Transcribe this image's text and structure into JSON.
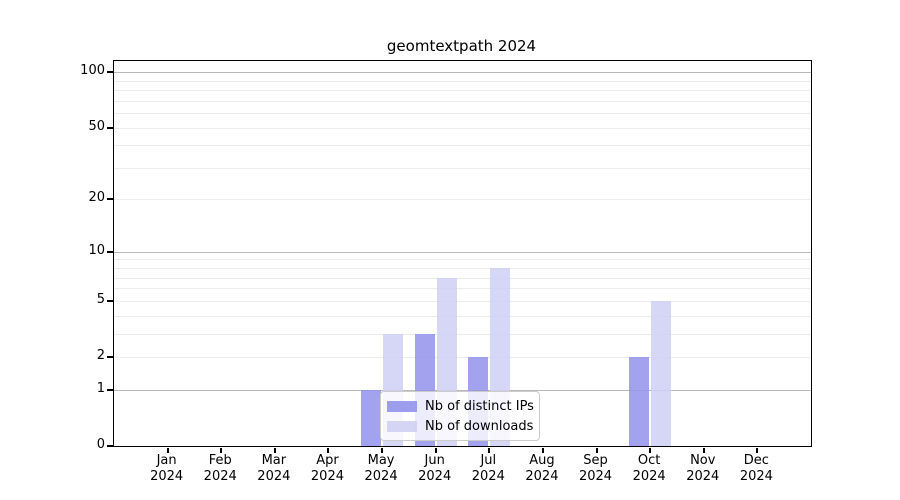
{
  "figure": {
    "title": "geomtextpath 2024",
    "background_color": "#ffffff"
  },
  "chart_data": {
    "type": "bar",
    "title": "geomtextpath 2024",
    "x_axis": {
      "categories": [
        "Jan",
        "Feb",
        "Mar",
        "Apr",
        "May",
        "Jun",
        "Jul",
        "Aug",
        "Sep",
        "Oct",
        "Nov",
        "Dec"
      ],
      "year_label": "2024"
    },
    "y_axis": {
      "scale": "log1p",
      "ylim": [
        0,
        115
      ],
      "tick_values": [
        0,
        1,
        2,
        5,
        10,
        20,
        50,
        100
      ],
      "tick_labels": [
        "0",
        "1",
        "2",
        "5",
        "10",
        "20",
        "50",
        "100"
      ],
      "major_gridlines": [
        1,
        10,
        100
      ],
      "minor_gridlines": [
        2,
        3,
        4,
        5,
        6,
        7,
        8,
        9,
        20,
        30,
        40,
        50,
        60,
        70,
        80,
        90
      ]
    },
    "series": [
      {
        "name": "Nb of distinct IPs",
        "color": "#9292ec",
        "values": [
          0,
          0,
          0,
          0,
          1,
          3,
          2,
          0,
          0,
          2,
          0,
          0
        ]
      },
      {
        "name": "Nb of downloads",
        "color": "#cfcff4",
        "values": [
          0,
          0,
          0,
          0,
          3,
          7,
          8,
          0,
          0,
          5,
          0,
          0
        ]
      }
    ],
    "legend": {
      "position": "inside-bottom-center"
    },
    "colors": {
      "grid_major": "#b9b9b9",
      "grid_minor": "#ececec",
      "spine": "#000000",
      "text": "#000000"
    }
  }
}
